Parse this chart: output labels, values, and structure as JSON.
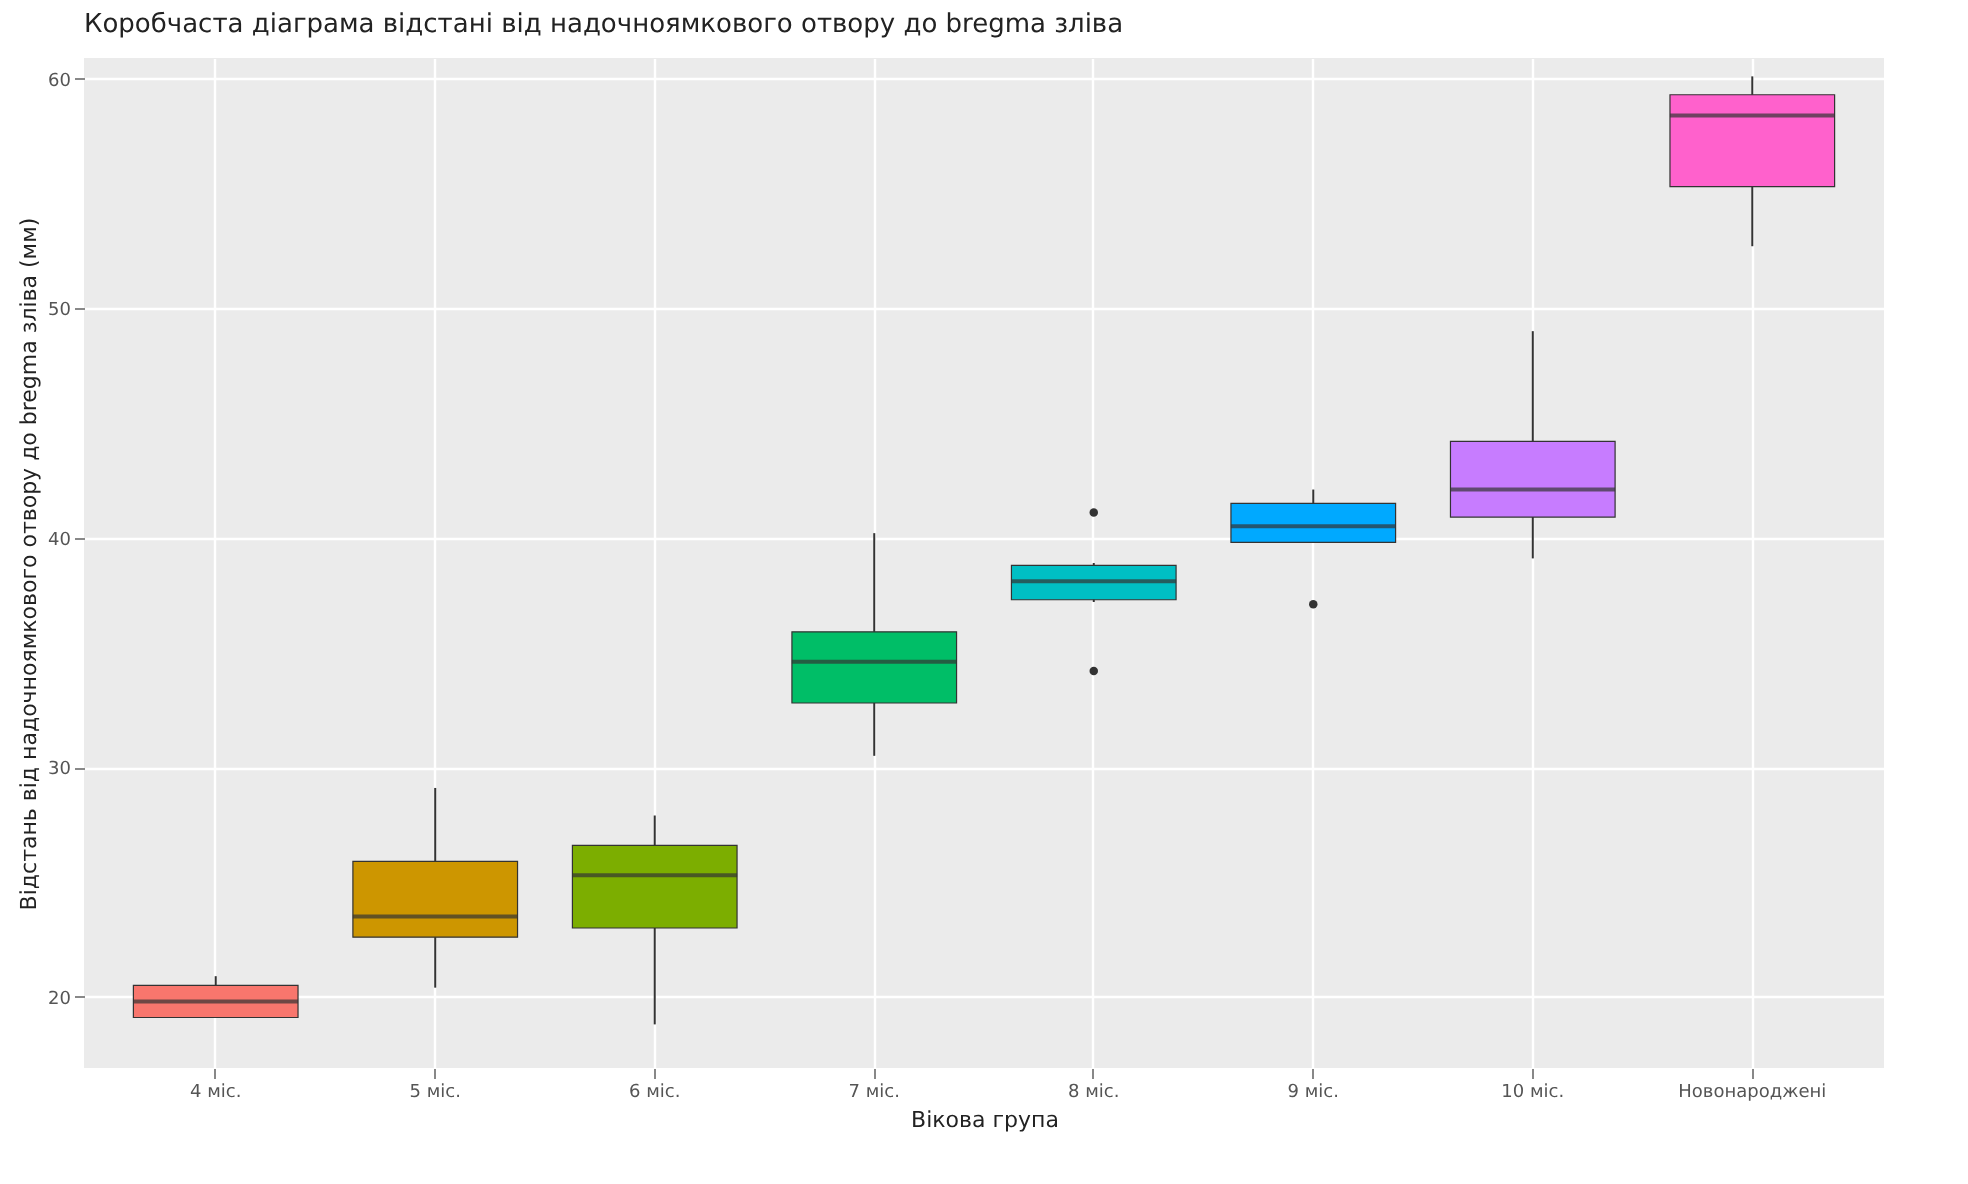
{
  "chart_data": {
    "type": "box",
    "title": "Коробчаста діаграма відстані від надочноямкового отвору до bregma зліва",
    "xlabel": "Вікова група",
    "ylabel": "Відстань від надочноямкового отвору до bregma зліва (мм)",
    "categories": [
      "4 міс.",
      "5 міс.",
      "6 міс.",
      "7 міс.",
      "8 міс.",
      "9 міс.",
      "10 міс.",
      "Новонароджені"
    ],
    "colors": [
      "#f8766d",
      "#cd9600",
      "#7cae00",
      "#00be67",
      "#00bfc4",
      "#00a9ff",
      "#c77cff",
      "#ff61cc"
    ],
    "boxes": [
      {
        "low": 19.1,
        "q1": 19.1,
        "median": 19.8,
        "q3": 20.5,
        "high": 20.9
      },
      {
        "low": 20.4,
        "q1": 22.6,
        "median": 23.5,
        "q3": 25.9,
        "high": 29.1
      },
      {
        "low": 18.8,
        "q1": 23.0,
        "median": 25.3,
        "q3": 26.6,
        "high": 27.9
      },
      {
        "low": 30.5,
        "q1": 32.8,
        "median": 34.6,
        "q3": 35.9,
        "high": 40.2
      },
      {
        "low": 37.2,
        "q1": 37.3,
        "median": 38.1,
        "q3": 38.8,
        "high": 38.9,
        "outliers": [
          41.1,
          34.2
        ]
      },
      {
        "low": 39.8,
        "q1": 39.8,
        "median": 40.5,
        "q3": 41.5,
        "high": 42.1,
        "outliers": [
          37.1
        ]
      },
      {
        "low": 39.1,
        "q1": 40.9,
        "median": 42.1,
        "q3": 44.2,
        "high": 49.0
      },
      {
        "low": 52.7,
        "q1": 55.3,
        "median": 58.4,
        "q3": 59.3,
        "high": 60.1
      }
    ],
    "ylim": [
      16.9,
      60.9
    ],
    "yticks": [
      20,
      30,
      40,
      50,
      60
    ],
    "grid": true
  }
}
